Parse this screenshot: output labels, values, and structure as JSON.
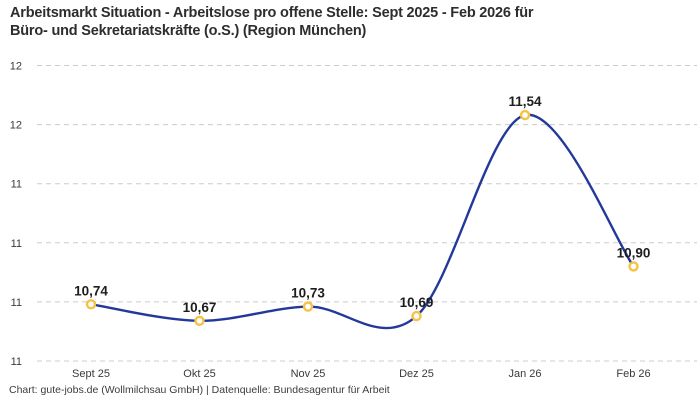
{
  "header": {
    "title_line1": "Arbeitsmarkt Situation - Arbeitslose pro offene Stelle: Sept 2025 - Feb 2026 für",
    "title_line2": "Büro- und Sekretariatskräfte (o.S.) (Region München)"
  },
  "footer": {
    "attribution": "Chart: gute-jobs.de (Wollmilchsau GmbH) | Datenquelle: Bundesagentur für Arbeit"
  },
  "chart_data": {
    "type": "line",
    "title": "Arbeitsmarkt Situation - Arbeitslose pro offene Stelle: Sept 2025 - Feb 2026 für Büro- und Sekretariatskräfte (o.S.) (Region München)",
    "categories": [
      "Sept 25",
      "Okt 25",
      "Nov 25",
      "Dez 25",
      "Jan 26",
      "Feb 26"
    ],
    "values": [
      10.74,
      10.67,
      10.73,
      10.69,
      11.54,
      10.9
    ],
    "value_labels": [
      "10,74",
      "10,67",
      "10,73",
      "10,69",
      "11,54",
      "10,90"
    ],
    "xlabel": "",
    "ylabel": "",
    "ylim": [
      10.5,
      11.75
    ],
    "y_ticks": [
      {
        "value": 11.75,
        "label": "12"
      },
      {
        "value": 11.5,
        "label": "12"
      },
      {
        "value": 11.25,
        "label": "11"
      },
      {
        "value": 11.0,
        "label": "11"
      },
      {
        "value": 10.75,
        "label": "11"
      },
      {
        "value": 10.5,
        "label": "11"
      }
    ],
    "grid": true,
    "legend": false,
    "line_style": "smooth",
    "colors": {
      "line": "#23389b",
      "marker_ring": "#f6c244",
      "marker_fill": "#ffffff",
      "gridline": "#cccccc",
      "data_label": "#1d1d1d",
      "tick_label": "#3a3a3a"
    }
  }
}
